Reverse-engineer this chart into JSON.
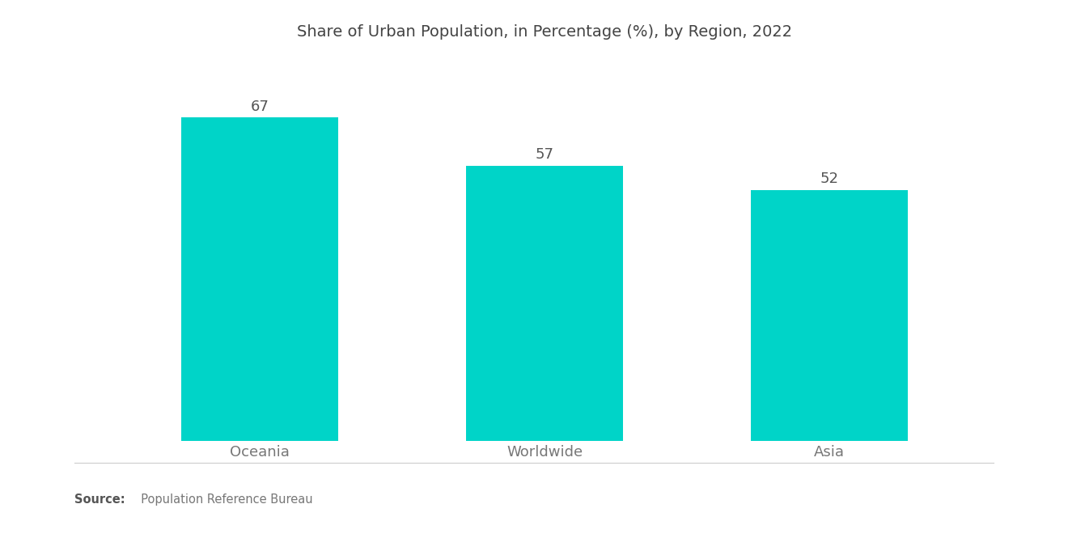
{
  "title": "Share of Urban Population, in Percentage (%), by Region, 2022",
  "categories": [
    "Oceania",
    "Worldwide",
    "Asia"
  ],
  "values": [
    67,
    57,
    52
  ],
  "bar_color": "#00D4C8",
  "background_color": "#ffffff",
  "title_fontsize": 14,
  "label_fontsize": 13,
  "value_fontsize": 13,
  "source_bold": "Source:",
  "source_rest": "  Population Reference Bureau",
  "ylim": [
    0,
    78
  ],
  "bar_width": 0.55,
  "xlim": [
    -0.65,
    2.65
  ],
  "label_color": "#777777",
  "value_color": "#555555"
}
